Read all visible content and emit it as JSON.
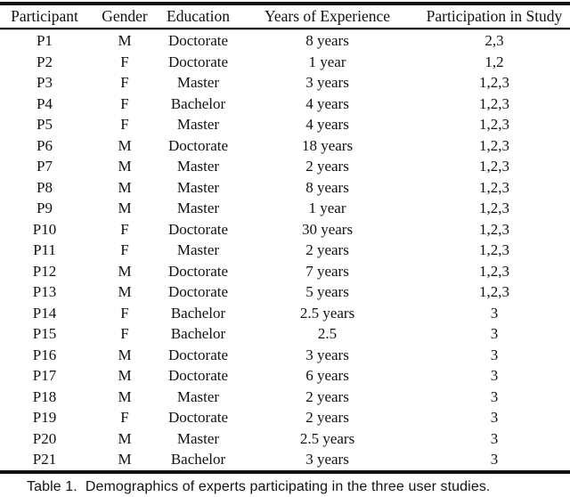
{
  "table": {
    "columns": [
      "Participant",
      "Gender",
      "Education",
      "Years of Experience",
      "Participation in Study"
    ],
    "rows": [
      [
        "P1",
        "M",
        "Doctorate",
        "8 years",
        "2,3"
      ],
      [
        "P2",
        "F",
        "Doctorate",
        "1 year",
        "1,2"
      ],
      [
        "P3",
        "F",
        "Master",
        "3 years",
        "1,2,3"
      ],
      [
        "P4",
        "F",
        "Bachelor",
        "4 years",
        "1,2,3"
      ],
      [
        "P5",
        "F",
        "Master",
        "4 years",
        "1,2,3"
      ],
      [
        "P6",
        "M",
        "Doctorate",
        "18 years",
        "1,2,3"
      ],
      [
        "P7",
        "M",
        "Master",
        "2 years",
        "1,2,3"
      ],
      [
        "P8",
        "M",
        "Master",
        "8 years",
        "1,2,3"
      ],
      [
        "P9",
        "M",
        "Master",
        "1 year",
        "1,2,3"
      ],
      [
        "P10",
        "F",
        "Doctorate",
        "30 years",
        "1,2,3"
      ],
      [
        "P11",
        "F",
        "Master",
        "2 years",
        "1,2,3"
      ],
      [
        "P12",
        "M",
        "Doctorate",
        "7 years",
        "1,2,3"
      ],
      [
        "P13",
        "M",
        "Doctorate",
        "5 years",
        "1,2,3"
      ],
      [
        "P14",
        "F",
        "Bachelor",
        "2.5 years",
        "3"
      ],
      [
        "P15",
        "F",
        "Bachelor",
        "2.5",
        "3"
      ],
      [
        "P16",
        "M",
        "Doctorate",
        "3 years",
        "3"
      ],
      [
        "P17",
        "M",
        "Doctorate",
        "6 years",
        "3"
      ],
      [
        "P18",
        "M",
        "Master",
        "2 years",
        "3"
      ],
      [
        "P19",
        "F",
        "Doctorate",
        "2 years",
        "3"
      ],
      [
        "P20",
        "M",
        "Master",
        "2.5 years",
        "3"
      ],
      [
        "P21",
        "M",
        "Bachelor",
        "3 years",
        "3"
      ]
    ]
  },
  "caption": {
    "label": "Table 1.",
    "text": "Demographics of experts participating in the three user studies."
  },
  "colors": {
    "text": "#111111",
    "rule": "#111111",
    "background": "#ffffff"
  }
}
